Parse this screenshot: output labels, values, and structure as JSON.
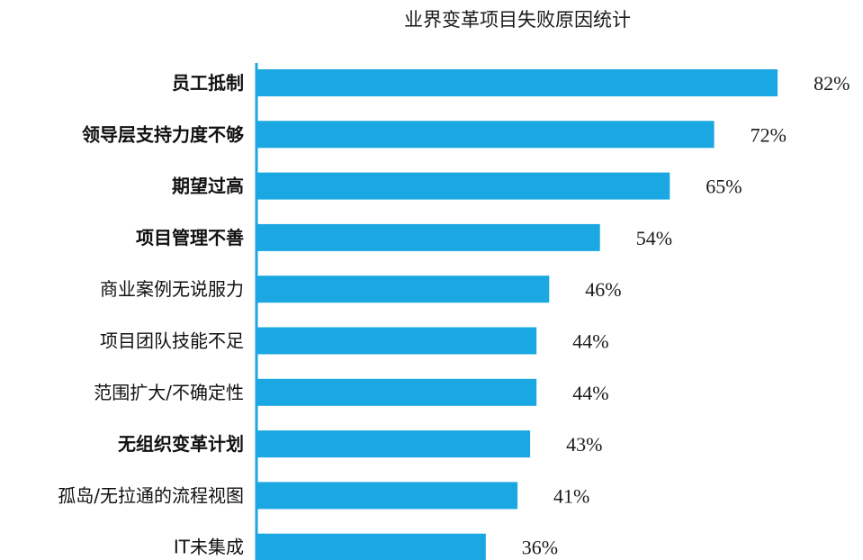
{
  "chart_data": {
    "type": "bar",
    "orientation": "horizontal",
    "title": "业界变革项目失败原因统计",
    "categories": [
      "员工抵制",
      "领导层支持力度不够",
      "期望过高",
      "项目管理不善",
      "商业案例无说服力",
      "项目团队技能不足",
      "范围扩大/不确定性",
      "无组织变革计划",
      "孤岛/无拉通的流程视图",
      "IT未集成"
    ],
    "values": [
      82,
      72,
      65,
      54,
      46,
      44,
      44,
      43,
      41,
      36
    ],
    "value_labels": [
      "82%",
      "72%",
      "65%",
      "54%",
      "46%",
      "44%",
      "44%",
      "43%",
      "41%",
      "36%"
    ],
    "bold_categories": [
      true,
      true,
      true,
      true,
      false,
      false,
      false,
      true,
      false,
      false
    ],
    "unit": "%",
    "xlim": [
      0,
      100
    ],
    "grid": false,
    "legend": "none",
    "colors": {
      "bar": "#1aa7e2",
      "axis": "#1aa7e2",
      "text": "#111111"
    }
  }
}
